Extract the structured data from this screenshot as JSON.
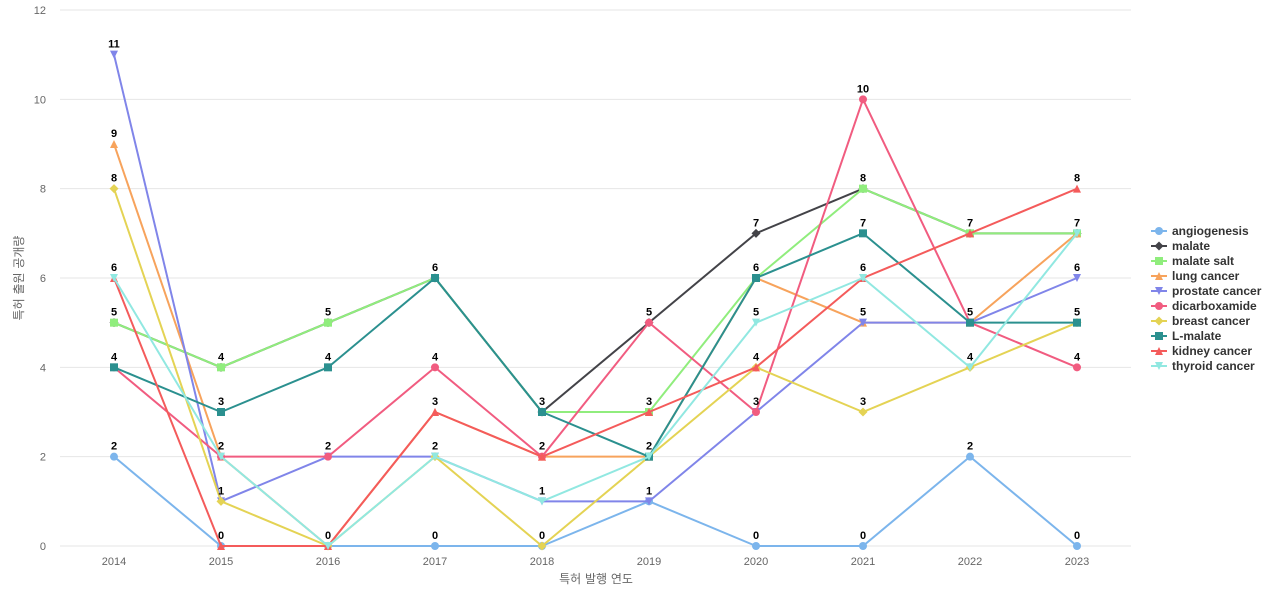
{
  "chart_data": {
    "type": "line",
    "title": "",
    "xlabel": "특허 발행 연도",
    "ylabel": "특허 출원 공개량",
    "ylim": [
      0,
      12
    ],
    "yticks": [
      0,
      2,
      4,
      6,
      8,
      10,
      12
    ],
    "grid": true,
    "legend_position": "right",
    "x": [
      "2014",
      "2015",
      "2016",
      "2017",
      "2018",
      "2019",
      "2020",
      "2021",
      "2022",
      "2023"
    ],
    "series": [
      {
        "name": "angiogenesis",
        "color": "#7cb5ec",
        "marker": "circle",
        "values": [
          2,
          0,
          0,
          0,
          0,
          1,
          0,
          0,
          2,
          0
        ]
      },
      {
        "name": "malate",
        "color": "#434348",
        "marker": "diamond",
        "values": [
          5,
          4,
          5,
          6,
          3,
          5,
          7,
          8,
          7,
          7
        ]
      },
      {
        "name": "malate salt",
        "color": "#90ed7d",
        "marker": "square",
        "values": [
          5,
          4,
          5,
          6,
          3,
          3,
          6,
          8,
          7,
          7
        ]
      },
      {
        "name": "lung cancer",
        "color": "#f7a35c",
        "marker": "triangle",
        "values": [
          9,
          2,
          0,
          3,
          2,
          2,
          6,
          5,
          5,
          7
        ]
      },
      {
        "name": "prostate cancer",
        "color": "#8085e9",
        "marker": "triangle-down",
        "values": [
          11,
          1,
          2,
          2,
          1,
          1,
          3,
          5,
          5,
          6
        ]
      },
      {
        "name": "dicarboxamide",
        "color": "#f15c80",
        "marker": "circle",
        "values": [
          4,
          2,
          2,
          4,
          2,
          5,
          3,
          10,
          5,
          4
        ]
      },
      {
        "name": "breast cancer",
        "color": "#e4d354",
        "marker": "diamond",
        "values": [
          8,
          1,
          0,
          2,
          0,
          2,
          4,
          3,
          4,
          5
        ]
      },
      {
        "name": "L-malate",
        "color": "#2b908f",
        "marker": "square",
        "values": [
          4,
          3,
          4,
          6,
          3,
          2,
          6,
          7,
          5,
          5
        ]
      },
      {
        "name": "kidney cancer",
        "color": "#f45b5b",
        "marker": "triangle",
        "values": [
          6,
          0,
          0,
          3,
          2,
          3,
          4,
          6,
          7,
          8
        ]
      },
      {
        "name": "thyroid cancer",
        "color": "#91e8e1",
        "marker": "triangle-down",
        "values": [
          6,
          2,
          0,
          2,
          1,
          2,
          5,
          6,
          4,
          7
        ]
      }
    ],
    "data_labels": [
      {
        "x": "2014",
        "value": 11
      },
      {
        "x": "2014",
        "value": 9
      },
      {
        "x": "2014",
        "value": 8
      },
      {
        "x": "2014",
        "value": 6
      },
      {
        "x": "2014",
        "value": 5
      },
      {
        "x": "2014",
        "value": 4
      },
      {
        "x": "2014",
        "value": 2
      },
      {
        "x": "2015",
        "value": 4
      },
      {
        "x": "2015",
        "value": 3
      },
      {
        "x": "2015",
        "value": 2
      },
      {
        "x": "2015",
        "value": 1
      },
      {
        "x": "2015",
        "value": 0
      },
      {
        "x": "2016",
        "value": 5
      },
      {
        "x": "2016",
        "value": 4
      },
      {
        "x": "2016",
        "value": 2
      },
      {
        "x": "2016",
        "value": 0
      },
      {
        "x": "2017",
        "value": 6
      },
      {
        "x": "2017",
        "value": 4
      },
      {
        "x": "2017",
        "value": 3
      },
      {
        "x": "2017",
        "value": 2
      },
      {
        "x": "2017",
        "value": 0
      },
      {
        "x": "2018",
        "value": 3
      },
      {
        "x": "2018",
        "value": 2
      },
      {
        "x": "2018",
        "value": 1
      },
      {
        "x": "2018",
        "value": 0
      },
      {
        "x": "2019",
        "value": 5
      },
      {
        "x": "2019",
        "value": 3
      },
      {
        "x": "2019",
        "value": 2
      },
      {
        "x": "2019",
        "value": 1
      },
      {
        "x": "2020",
        "value": 7
      },
      {
        "x": "2020",
        "value": 6
      },
      {
        "x": "2020",
        "value": 5
      },
      {
        "x": "2020",
        "value": 4
      },
      {
        "x": "2020",
        "value": 3
      },
      {
        "x": "2020",
        "value": 0
      },
      {
        "x": "2021",
        "value": 10
      },
      {
        "x": "2021",
        "value": 8
      },
      {
        "x": "2021",
        "value": 7
      },
      {
        "x": "2021",
        "value": 6
      },
      {
        "x": "2021",
        "value": 5
      },
      {
        "x": "2021",
        "value": 3
      },
      {
        "x": "2021",
        "value": 0
      },
      {
        "x": "2022",
        "value": 7
      },
      {
        "x": "2022",
        "value": 5
      },
      {
        "x": "2022",
        "value": 4
      },
      {
        "x": "2022",
        "value": 2
      },
      {
        "x": "2023",
        "value": 8
      },
      {
        "x": "2023",
        "value": 7
      },
      {
        "x": "2023",
        "value": 6
      },
      {
        "x": "2023",
        "value": 5
      },
      {
        "x": "2023",
        "value": 4
      },
      {
        "x": "2023",
        "value": 0
      }
    ]
  }
}
